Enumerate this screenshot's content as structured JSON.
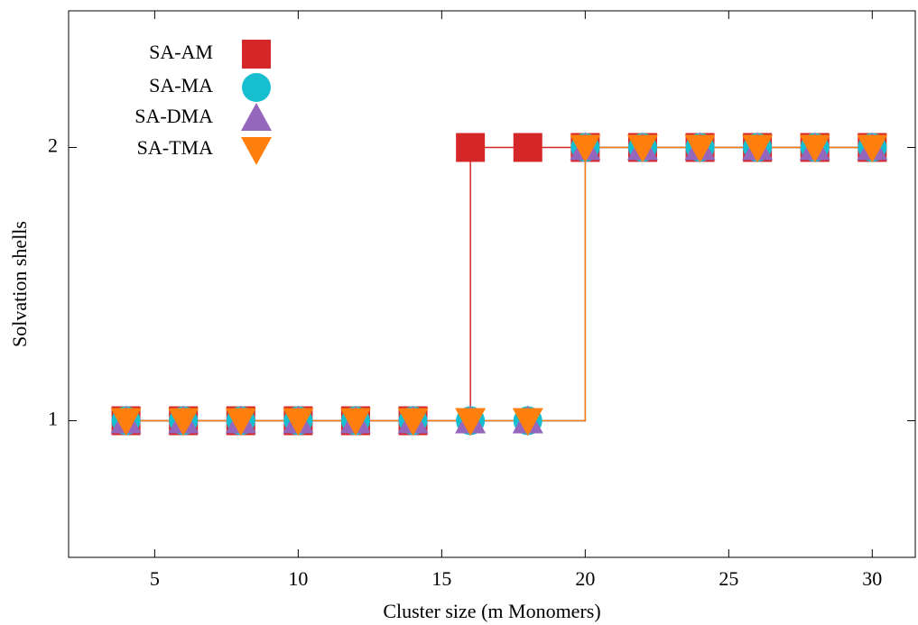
{
  "chart_data": {
    "type": "scatter",
    "line_shape": "steps",
    "xlabel": "Cluster size (m Monomers)",
    "ylabel": "Solvation shells",
    "x": [
      4,
      6,
      8,
      10,
      12,
      14,
      16,
      18,
      20,
      22,
      24,
      26,
      28,
      30
    ],
    "xlim": [
      2,
      31.5
    ],
    "xticks": [
      5,
      10,
      15,
      20,
      25,
      30
    ],
    "ylim": [
      0.5,
      2.5
    ],
    "yticks": [
      1,
      2
    ],
    "legend": "top-left",
    "series": [
      {
        "name": "SA-AM",
        "color": "#d62728",
        "marker": "square",
        "values": [
          1,
          1,
          1,
          1,
          1,
          1,
          2,
          2,
          2,
          2,
          2,
          2,
          2,
          2
        ]
      },
      {
        "name": "SA-MA",
        "color": "#17becf",
        "marker": "circle",
        "values": [
          1,
          1,
          1,
          1,
          1,
          1,
          1,
          1,
          2,
          2,
          2,
          2,
          2,
          2
        ]
      },
      {
        "name": "SA-DMA",
        "color": "#9467bd",
        "marker": "triangle-up",
        "values": [
          1,
          1,
          1,
          1,
          1,
          1,
          1,
          1,
          2,
          2,
          2,
          2,
          2,
          2
        ]
      },
      {
        "name": "SA-TMA",
        "color": "#ff7f0e",
        "marker": "triangle-down",
        "values": [
          1,
          1,
          1,
          1,
          1,
          1,
          1,
          1,
          2,
          2,
          2,
          2,
          2,
          2
        ]
      }
    ]
  }
}
